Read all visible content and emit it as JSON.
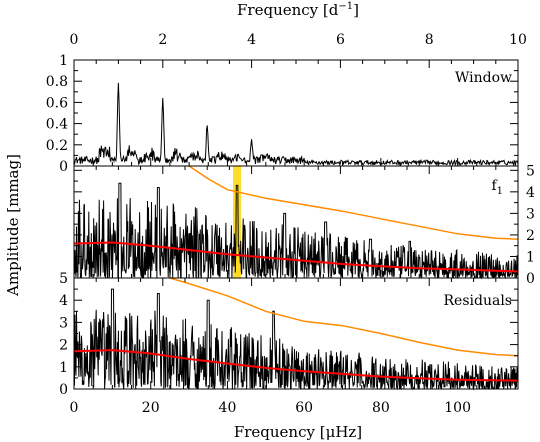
{
  "chart_data": {
    "type": "line",
    "figure": {
      "xlabel_bottom": "Frequency [μHz]",
      "xlabel_top_main": "Frequency [d",
      "xlabel_top_sup": "−1",
      "xlabel_top_end": "]",
      "ylabel": "Amplitude [mmag]"
    },
    "x_bottom": {
      "range": [
        0,
        115.74
      ],
      "ticks": [
        0,
        20,
        40,
        60,
        80,
        100
      ],
      "labels": [
        "0",
        "20",
        "40",
        "60",
        "80",
        "100"
      ]
    },
    "x_top": {
      "range": [
        0,
        10
      ],
      "ticks": [
        0,
        2,
        4,
        6,
        8,
        10
      ],
      "labels": [
        "0",
        "2",
        "4",
        "6",
        "8",
        "10"
      ]
    },
    "panels": [
      {
        "id": "window",
        "label": "Window",
        "ylim": [
          0,
          1
        ],
        "y_ticks": [
          0,
          0.2,
          0.4,
          0.6,
          0.8,
          1
        ],
        "y_tick_labels": [
          "0",
          "0.2",
          "0.4",
          "0.6",
          "0.8",
          "1"
        ],
        "y_axis_side": "left",
        "peaks": [
          {
            "x": 11.57,
            "y": 0.77
          },
          {
            "x": 23.15,
            "y": 0.6
          },
          {
            "x": 34.72,
            "y": 0.38
          },
          {
            "x": 46.3,
            "y": 0.22
          }
        ],
        "noise_level": 0.06
      },
      {
        "id": "f1",
        "label_main": "f",
        "label_sub": "1",
        "ylim": [
          0,
          5.2
        ],
        "y_ticks": [
          0,
          1,
          2,
          3,
          4,
          5
        ],
        "y_tick_labels": [
          "0",
          "1",
          "2",
          "3",
          "4",
          "5"
        ],
        "y_axis_side": "right",
        "highlight": {
          "x": 42.5,
          "color": "#ffd700"
        },
        "spectrum_envelope": [
          {
            "x": 0,
            "y": 3.9
          },
          {
            "x": 20,
            "y": 3.7
          },
          {
            "x": 40,
            "y": 3.0
          },
          {
            "x": 60,
            "y": 2.3
          },
          {
            "x": 80,
            "y": 1.6
          },
          {
            "x": 115.74,
            "y": 1.1
          }
        ],
        "peaks": [
          {
            "x": 42.5,
            "y": 4.3
          },
          {
            "x": 65.6,
            "y": 2.6
          },
          {
            "x": 54.9,
            "y": 3.0
          },
          {
            "x": 77.3,
            "y": 1.8
          },
          {
            "x": 87.5,
            "y": 1.7
          },
          {
            "x": 12,
            "y": 4.4
          },
          {
            "x": 22,
            "y": 4.2
          }
        ],
        "series": [
          {
            "name": "",
            "color": "#ff0000",
            "points": [
              {
                "x": 0,
                "y": 1.6
              },
              {
                "x": 10,
                "y": 1.65
              },
              {
                "x": 20,
                "y": 1.5
              },
              {
                "x": 30,
                "y": 1.3
              },
              {
                "x": 40,
                "y": 1.1
              },
              {
                "x": 50,
                "y": 0.95
              },
              {
                "x": 60,
                "y": 0.8
              },
              {
                "x": 70,
                "y": 0.65
              },
              {
                "x": 80,
                "y": 0.55
              },
              {
                "x": 90,
                "y": 0.45
              },
              {
                "x": 100,
                "y": 0.4
              },
              {
                "x": 115.74,
                "y": 0.3
              }
            ]
          },
          {
            "name": "",
            "color": "#ff8c00",
            "points": [
              {
                "x": 30,
                "y": 5.2
              },
              {
                "x": 35,
                "y": 4.6
              },
              {
                "x": 40,
                "y": 4.1
              },
              {
                "x": 50,
                "y": 3.7
              },
              {
                "x": 60,
                "y": 3.4
              },
              {
                "x": 70,
                "y": 3.1
              },
              {
                "x": 80,
                "y": 2.75
              },
              {
                "x": 90,
                "y": 2.4
              },
              {
                "x": 100,
                "y": 2.05
              },
              {
                "x": 110,
                "y": 1.85
              },
              {
                "x": 115.74,
                "y": 1.8
              }
            ]
          }
        ]
      },
      {
        "id": "residuals",
        "label": "Residuals",
        "ylim": [
          0,
          5
        ],
        "y_ticks": [
          0,
          1,
          2,
          3,
          4,
          5
        ],
        "y_tick_labels": [
          "0",
          "1",
          "2",
          "3",
          "4",
          "5"
        ],
        "y_axis_side": "left",
        "spectrum_envelope": [
          {
            "x": 0,
            "y": 3.7
          },
          {
            "x": 20,
            "y": 3.6
          },
          {
            "x": 40,
            "y": 2.9
          },
          {
            "x": 60,
            "y": 2.0
          },
          {
            "x": 80,
            "y": 1.5
          },
          {
            "x": 115.74,
            "y": 1.0
          }
        ],
        "peaks": [
          {
            "x": 10,
            "y": 4.5
          },
          {
            "x": 22,
            "y": 4.3
          },
          {
            "x": 35,
            "y": 4.0
          },
          {
            "x": 52,
            "y": 3.5
          }
        ],
        "series": [
          {
            "name": "",
            "color": "#ff0000",
            "points": [
              {
                "x": 0,
                "y": 1.7
              },
              {
                "x": 10,
                "y": 1.75
              },
              {
                "x": 20,
                "y": 1.6
              },
              {
                "x": 30,
                "y": 1.35
              },
              {
                "x": 40,
                "y": 1.15
              },
              {
                "x": 50,
                "y": 0.95
              },
              {
                "x": 60,
                "y": 0.8
              },
              {
                "x": 70,
                "y": 0.68
              },
              {
                "x": 80,
                "y": 0.56
              },
              {
                "x": 90,
                "y": 0.48
              },
              {
                "x": 100,
                "y": 0.42
              },
              {
                "x": 115.74,
                "y": 0.38
              }
            ]
          },
          {
            "name": "",
            "color": "#ff8c00",
            "points": [
              {
                "x": 25,
                "y": 5.0
              },
              {
                "x": 30,
                "y": 4.75
              },
              {
                "x": 40,
                "y": 4.2
              },
              {
                "x": 50,
                "y": 3.5
              },
              {
                "x": 60,
                "y": 3.05
              },
              {
                "x": 70,
                "y": 2.85
              },
              {
                "x": 80,
                "y": 2.5
              },
              {
                "x": 90,
                "y": 2.1
              },
              {
                "x": 100,
                "y": 1.75
              },
              {
                "x": 110,
                "y": 1.55
              },
              {
                "x": 115.74,
                "y": 1.5
              }
            ]
          }
        ]
      }
    ]
  }
}
